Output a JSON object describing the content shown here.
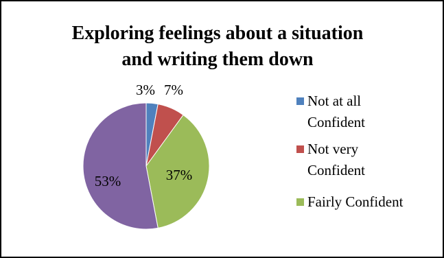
{
  "chart_data": {
    "type": "pie",
    "title_lines": [
      "Exploring feelings about a situation",
      "and writing them down"
    ],
    "slices": [
      {
        "label_lines": [
          "Not at all",
          "Confident"
        ],
        "value": 3,
        "display": "3%",
        "color": "#4f81bd",
        "in_legend": true
      },
      {
        "label_lines": [
          "Not very",
          "Confident"
        ],
        "value": 7,
        "display": "7%",
        "color": "#c0504d",
        "in_legend": true
      },
      {
        "label_lines": [
          "Fairly Confident"
        ],
        "value": 37,
        "display": "37%",
        "color": "#9bbb59",
        "in_legend": true
      },
      {
        "label_lines": [],
        "value": 53,
        "display": "53%",
        "color": "#8064a2",
        "in_legend": false
      }
    ],
    "legend_position": "right",
    "border_color": "#000000"
  }
}
